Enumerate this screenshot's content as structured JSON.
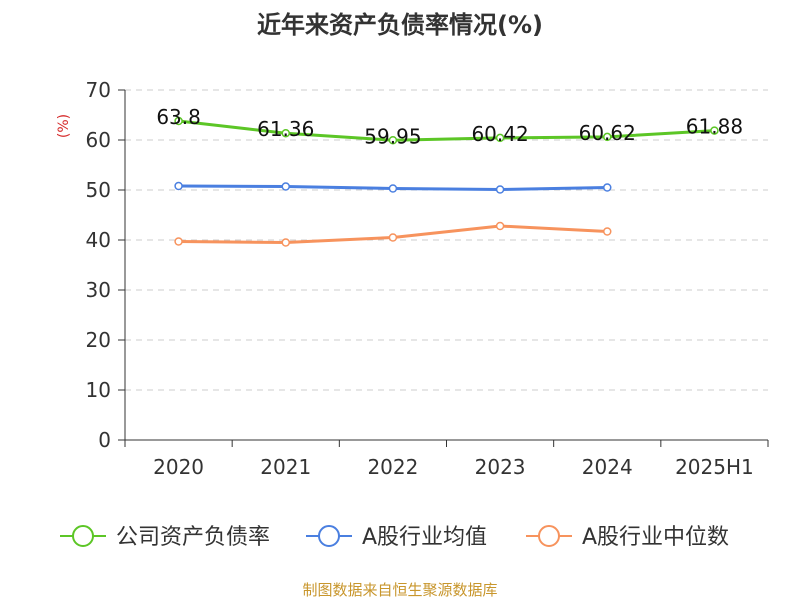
{
  "chart_data": {
    "type": "line",
    "title": "近年来资产负债率情况(%)",
    "ylabel": "(%)",
    "categories": [
      "2020",
      "2021",
      "2022",
      "2023",
      "2024",
      "2025H1"
    ],
    "ylim": [
      0,
      70
    ],
    "yticks": [
      0,
      10,
      20,
      30,
      40,
      50,
      60,
      70
    ],
    "grid": true,
    "legend_position": "bottom",
    "series": [
      {
        "name": "公司资产负债率",
        "color": "#5cc626",
        "values": [
          63.8,
          61.36,
          59.95,
          60.42,
          60.62,
          61.88
        ],
        "labels": [
          "63.8",
          "61.36",
          "59.95",
          "60.42",
          "60.62",
          "61.88"
        ]
      },
      {
        "name": "A股行业均值",
        "color": "#4a7fe0",
        "values": [
          50.8,
          50.7,
          50.3,
          50.1,
          50.5,
          null
        ]
      },
      {
        "name": "A股行业中位数",
        "color": "#f7935d",
        "values": [
          39.7,
          39.5,
          40.5,
          42.8,
          41.7,
          null
        ]
      }
    ]
  },
  "source": "制图数据来自恒生聚源数据库",
  "colors": {
    "ylabel": "#d62b2b",
    "source": "#c8962c",
    "grid": "#cccccc",
    "axis": "#333333"
  }
}
